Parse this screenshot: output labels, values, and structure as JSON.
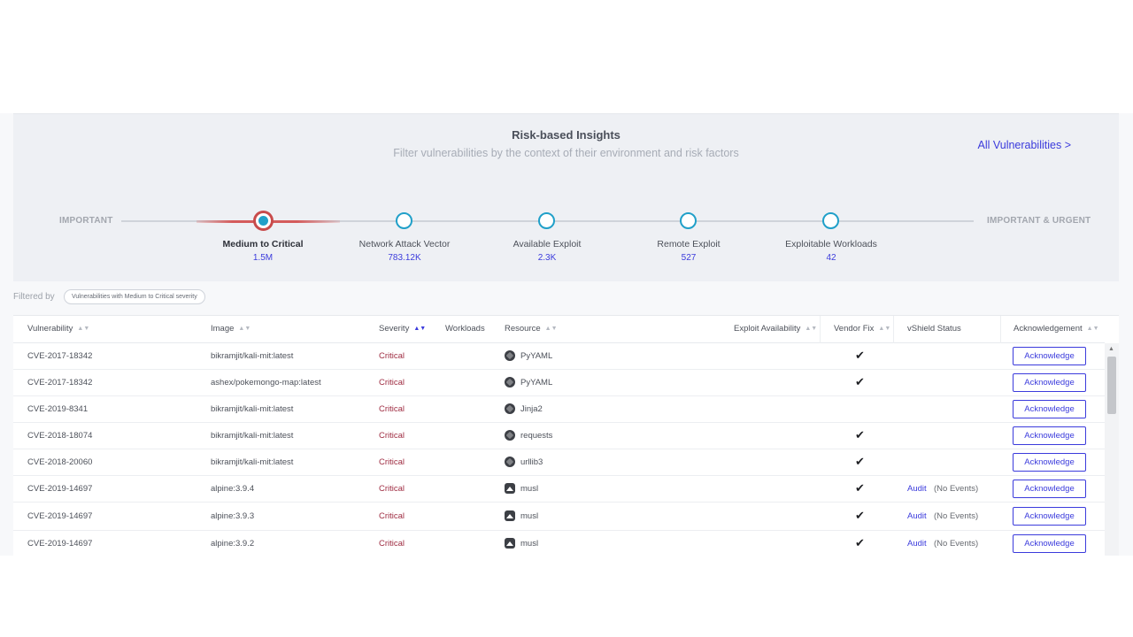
{
  "hero": {
    "title": "Risk-based Insights",
    "subtitle": "Filter vulnerabilities by the context of their environment and risk factors",
    "all_link": "All Vulnerabilities >",
    "left_label": "IMPORTANT",
    "right_label": "IMPORTANT & URGENT",
    "steps": [
      {
        "label": "Medium to Critical",
        "count": "1.5M",
        "active": true
      },
      {
        "label": "Network Attack Vector",
        "count": "783.12K",
        "active": false
      },
      {
        "label": "Available Exploit",
        "count": "2.3K",
        "active": false
      },
      {
        "label": "Remote Exploit",
        "count": "527",
        "active": false
      },
      {
        "label": "Exploitable Workloads",
        "count": "42",
        "active": false
      }
    ]
  },
  "filter": {
    "label": "Filtered by",
    "chip": "Vulnerabilities with Medium to Critical severity"
  },
  "table": {
    "headers": {
      "vulnerability": "Vulnerability",
      "image": "Image",
      "severity": "Severity",
      "workloads": "Workloads",
      "resource": "Resource",
      "exploit": "Exploit Availability",
      "vendor_fix": "Vendor Fix",
      "vshield": "vShield Status",
      "ack": "Acknowledgement"
    },
    "check_glyph": "✔",
    "ack_label": "Acknowledge",
    "rows": [
      {
        "vuln": "CVE-2017-18342",
        "image": "bikramjit/kali-mit:latest",
        "severity": "Critical",
        "resource": "PyYAML",
        "res_icon": "python-icon",
        "fix": true,
        "audit": "",
        "events": ""
      },
      {
        "vuln": "CVE-2017-18342",
        "image": "ashex/pokemongo-map:latest",
        "severity": "Critical",
        "resource": "PyYAML",
        "res_icon": "python-icon",
        "fix": true,
        "audit": "",
        "events": ""
      },
      {
        "vuln": "CVE-2019-8341",
        "image": "bikramjit/kali-mit:latest",
        "severity": "Critical",
        "resource": "Jinja2",
        "res_icon": "python-icon",
        "fix": false,
        "audit": "",
        "events": ""
      },
      {
        "vuln": "CVE-2018-18074",
        "image": "bikramjit/kali-mit:latest",
        "severity": "Critical",
        "resource": "requests",
        "res_icon": "python-icon",
        "fix": true,
        "audit": "",
        "events": ""
      },
      {
        "vuln": "CVE-2018-20060",
        "image": "bikramjit/kali-mit:latest",
        "severity": "Critical",
        "resource": "urllib3",
        "res_icon": "python-icon",
        "fix": true,
        "audit": "",
        "events": ""
      },
      {
        "vuln": "CVE-2019-14697",
        "image": "alpine:3.9.4",
        "severity": "Critical",
        "resource": "musl",
        "res_icon": "alpine-icon",
        "fix": true,
        "audit": "Audit",
        "events": "(No Events)"
      },
      {
        "vuln": "CVE-2019-14697",
        "image": "alpine:3.9.3",
        "severity": "Critical",
        "resource": "musl",
        "res_icon": "alpine-icon",
        "fix": true,
        "audit": "Audit",
        "events": "(No Events)"
      },
      {
        "vuln": "CVE-2019-14697",
        "image": "alpine:3.9.2",
        "severity": "Critical",
        "resource": "musl",
        "res_icon": "alpine-icon",
        "fix": true,
        "audit": "Audit",
        "events": "(No Events)"
      }
    ]
  },
  "colors": {
    "accent": "#3b3bdc",
    "node": "#21a0c9",
    "active_ring": "#c84b4b",
    "critical": "#9e2b41"
  }
}
